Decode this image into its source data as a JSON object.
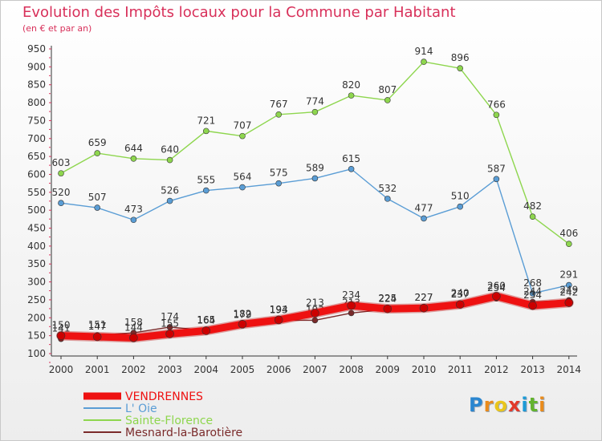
{
  "header": {
    "title": "Evolution des Impôts locaux pour la Commune par Habitant",
    "subtitle": "(en € et par an)"
  },
  "logo": {
    "text": "Proxiti",
    "letters": [
      "P",
      "r",
      "o",
      "x",
      "i",
      "t",
      "i"
    ],
    "colors": [
      "#2a86d0",
      "#e98b1c",
      "#e9c51c",
      "#e23a2b",
      "#1c9ad6",
      "#63b32e",
      "#e98b1c"
    ]
  },
  "chart_data": {
    "type": "line",
    "x": [
      "2000",
      "2001",
      "2002",
      "2003",
      "2004",
      "2005",
      "2006",
      "2007",
      "2008",
      "2009",
      "2010",
      "2011",
      "2012",
      "2013",
      "2014"
    ],
    "yticks": [
      100,
      150,
      200,
      250,
      300,
      350,
      400,
      450,
      500,
      550,
      600,
      650,
      700,
      750,
      800,
      850,
      900,
      950
    ],
    "ylim": [
      100,
      950
    ],
    "grid": false,
    "legend_position": "bottom-left",
    "series": [
      {
        "name": "Sainte-Florence",
        "color": "#8ed64e",
        "values": [
          603,
          659,
          644,
          640,
          721,
          707,
          767,
          774,
          820,
          807,
          914,
          896,
          766,
          482,
          406
        ],
        "labels": [
          "603",
          "659",
          "644",
          "640",
          "721",
          "707",
          "767",
          "774",
          "820",
          "807",
          "914",
          "896",
          "766",
          "482",
          "406"
        ]
      },
      {
        "name": "L' Oie",
        "color": "#5a9dd5",
        "values": [
          520,
          507,
          473,
          526,
          555,
          564,
          575,
          589,
          615,
          532,
          477,
          510,
          587,
          268,
          291
        ],
        "labels": [
          "520",
          "507",
          "473",
          "526",
          "555",
          "564",
          "575",
          "589",
          "615",
          "532",
          "477",
          "510",
          "587",
          "268",
          "291"
        ]
      },
      {
        "name": "Mesnard-la-Barotière",
        "color": "#7a2a2a",
        "values": [
          141,
          151,
          158,
          174,
          165,
          179,
          193,
          193,
          213,
          224,
          227,
          240,
          254,
          244,
          249
        ],
        "labels": [
          "141",
          "151",
          "158",
          "174",
          "165",
          "179",
          "193",
          "193",
          "213",
          "224",
          "227",
          "240",
          "254",
          "244",
          "249"
        ]
      },
      {
        "name": "VENDRENNES",
        "color": "#ee1111",
        "values": [
          150,
          147,
          144,
          155,
          164,
          182,
          194,
          213,
          234,
          225,
          227,
          237,
          260,
          234,
          242
        ],
        "labels": [
          "150",
          "147",
          "144",
          "155",
          "164",
          "182",
          "194",
          "213",
          "234",
          "225",
          "227",
          "237",
          "260",
          "234",
          "242"
        ]
      }
    ],
    "legend": [
      {
        "name": "VENDRENNES",
        "color": "#ee1111",
        "thickness": 9
      },
      {
        "name": "L' Oie",
        "color": "#5a9dd5",
        "thickness": 2
      },
      {
        "name": "Sainte-Florence",
        "color": "#8ed64e",
        "thickness": 2
      },
      {
        "name": "Mesnard-la-Barotière",
        "color": "#7a2a2a",
        "thickness": 2
      }
    ]
  }
}
